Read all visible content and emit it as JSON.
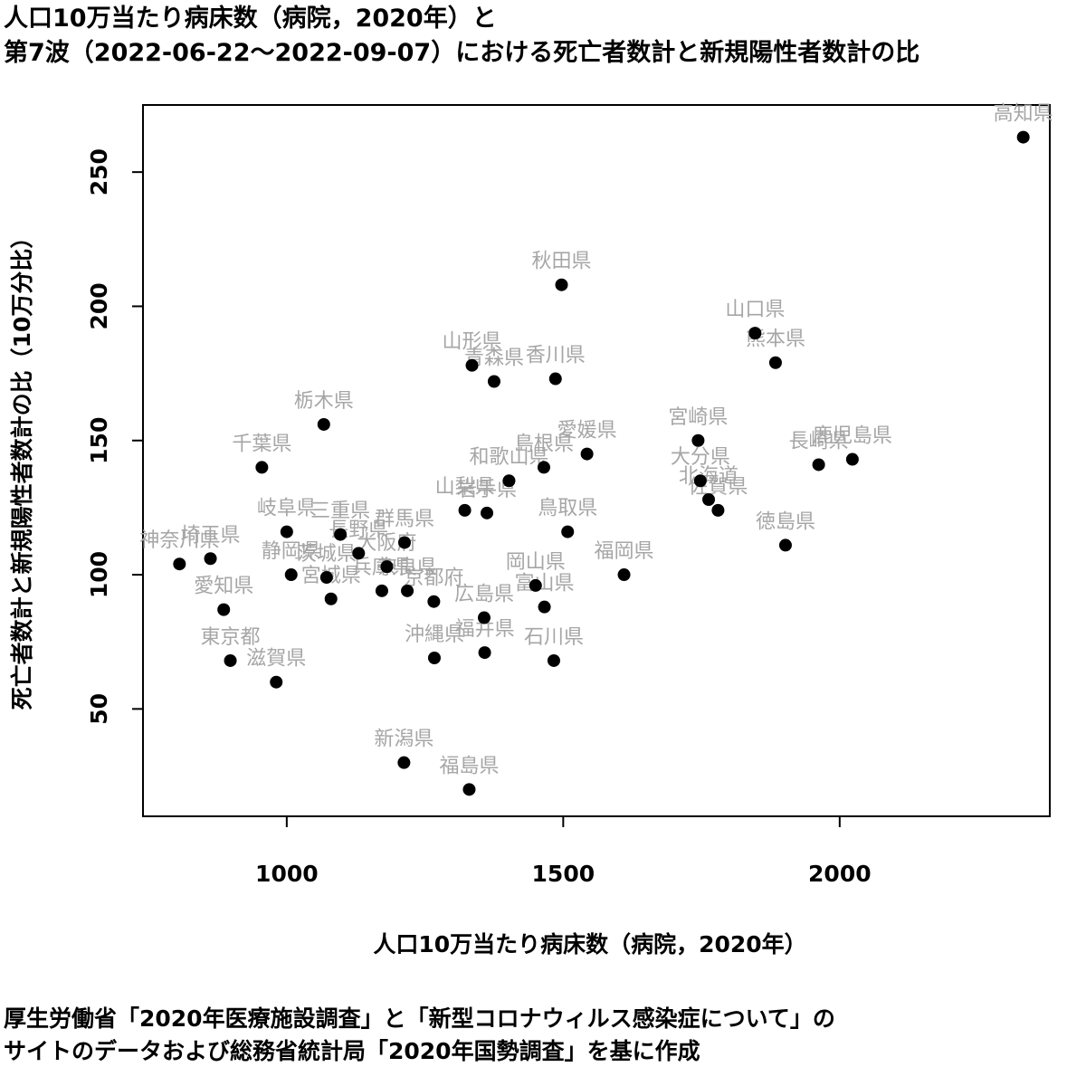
{
  "title_lines": [
    "人口10万当たり病床数（病院，2020年）と",
    "第7波（2022-06-22〜2022-09-07）における死亡者数計と新規陽性者数計の比"
  ],
  "caption_lines": [
    "厚生労働省「2020年医療施設調査」と「新型コロナウィルス感染症について」の",
    "サイトのデータおよび総務省統計局「2020年国勢調査」を基に作成"
  ],
  "colors": {
    "point": "#000000",
    "label": "#a6a6a6",
    "axis": "#000000"
  },
  "chart_data": {
    "type": "scatter",
    "title": "人口10万当たり病床数（病院，2020年）と第7波（2022-06-22〜2022-09-07）における死亡者数計と新規陽性者数計の比",
    "xlabel": "人口10万当たり病床数（病院，2020年）",
    "ylabel": "死亡者数計と新規陽性者数計の比（10万分比）",
    "xlim": [
      740,
      2380
    ],
    "ylim": [
      10,
      275
    ],
    "xticks": [
      1000,
      1500,
      2000
    ],
    "yticks": [
      50,
      100,
      150,
      200,
      250
    ],
    "grid": false,
    "points": [
      {
        "label": "北海道",
        "x": 1763,
        "y": 128
      },
      {
        "label": "青森県",
        "x": 1375,
        "y": 172
      },
      {
        "label": "岩手県",
        "x": 1362,
        "y": 123
      },
      {
        "label": "宮城県",
        "x": 1080,
        "y": 91
      },
      {
        "label": "秋田県",
        "x": 1497,
        "y": 208
      },
      {
        "label": "山形県",
        "x": 1335,
        "y": 178
      },
      {
        "label": "福島県",
        "x": 1330,
        "y": 20
      },
      {
        "label": "茨城県",
        "x": 1072,
        "y": 99
      },
      {
        "label": "栃木県",
        "x": 1067,
        "y": 156
      },
      {
        "label": "群馬県",
        "x": 1213,
        "y": 112
      },
      {
        "label": "埼玉県",
        "x": 862,
        "y": 106
      },
      {
        "label": "千葉県",
        "x": 955,
        "y": 140
      },
      {
        "label": "東京都",
        "x": 898,
        "y": 68
      },
      {
        "label": "神奈川県",
        "x": 806,
        "y": 104
      },
      {
        "label": "新潟県",
        "x": 1212,
        "y": 30
      },
      {
        "label": "富山県",
        "x": 1466,
        "y": 88
      },
      {
        "label": "石川県",
        "x": 1483,
        "y": 68
      },
      {
        "label": "福井県",
        "x": 1358,
        "y": 71
      },
      {
        "label": "山梨県",
        "x": 1322,
        "y": 124
      },
      {
        "label": "長野県",
        "x": 1130,
        "y": 108
      },
      {
        "label": "岐阜県",
        "x": 1000,
        "y": 116
      },
      {
        "label": "静岡県",
        "x": 1008,
        "y": 100
      },
      {
        "label": "愛知県",
        "x": 886,
        "y": 87
      },
      {
        "label": "三重県",
        "x": 1097,
        "y": 115
      },
      {
        "label": "滋賀県",
        "x": 981,
        "y": 60
      },
      {
        "label": "京都府",
        "x": 1266,
        "y": 90
      },
      {
        "label": "大阪府",
        "x": 1181,
        "y": 103
      },
      {
        "label": "兵庫県",
        "x": 1172,
        "y": 94
      },
      {
        "label": "奈良県",
        "x": 1218,
        "y": 94
      },
      {
        "label": "和歌山県",
        "x": 1402,
        "y": 135
      },
      {
        "label": "鳥取県",
        "x": 1508,
        "y": 116
      },
      {
        "label": "島根県",
        "x": 1465,
        "y": 140
      },
      {
        "label": "岡山県",
        "x": 1450,
        "y": 96
      },
      {
        "label": "広島県",
        "x": 1357,
        "y": 84
      },
      {
        "label": "山口県",
        "x": 1847,
        "y": 190
      },
      {
        "label": "徳島県",
        "x": 1902,
        "y": 111
      },
      {
        "label": "香川県",
        "x": 1486,
        "y": 173
      },
      {
        "label": "愛媛県",
        "x": 1543,
        "y": 145
      },
      {
        "label": "高知県",
        "x": 2332,
        "y": 263
      },
      {
        "label": "福岡県",
        "x": 1610,
        "y": 100
      },
      {
        "label": "佐賀県",
        "x": 1780,
        "y": 124
      },
      {
        "label": "長崎県",
        "x": 1962,
        "y": 141
      },
      {
        "label": "熊本県",
        "x": 1884,
        "y": 179
      },
      {
        "label": "大分県",
        "x": 1748,
        "y": 135
      },
      {
        "label": "宮崎県",
        "x": 1744,
        "y": 150
      },
      {
        "label": "鹿児島県",
        "x": 2023,
        "y": 143
      },
      {
        "label": "沖縄県",
        "x": 1267,
        "y": 69
      }
    ]
  }
}
